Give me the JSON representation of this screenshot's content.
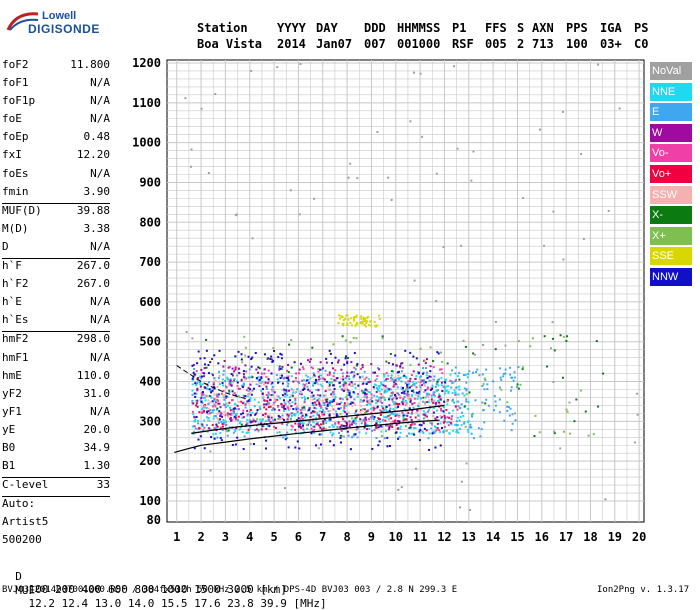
{
  "logo": {
    "top": "Lowell",
    "bottom": "DIGISONDE"
  },
  "header": {
    "labels": [
      "Station",
      "YYYY",
      "DAY",
      "DDD",
      "HHMMSS",
      "P1",
      "FFS",
      "S",
      "AXN",
      "PPS",
      "IGA",
      "PS"
    ],
    "values": [
      "Boa Vista",
      "2014",
      "Jan07",
      "007",
      "001000",
      "RSF",
      "005",
      "2",
      "713",
      "100",
      "03+",
      "C0"
    ]
  },
  "params": [
    {
      "k": "foF2",
      "v": "11.800"
    },
    {
      "k": "foF1",
      "v": "N/A"
    },
    {
      "k": "foF1p",
      "v": "N/A"
    },
    {
      "k": "foE",
      "v": "N/A"
    },
    {
      "k": "foEp",
      "v": "0.48"
    },
    {
      "k": "fxI",
      "v": "12.20"
    },
    {
      "k": "foEs",
      "v": "N/A"
    },
    {
      "k": "fmin",
      "v": "3.90"
    },
    {
      "sep": true
    },
    {
      "k": "MUF(D)",
      "v": "39.88"
    },
    {
      "k": "M(D)",
      "v": "3.38"
    },
    {
      "k": "D",
      "v": "N/A"
    },
    {
      "sep": true
    },
    {
      "k": "h`F",
      "v": "267.0"
    },
    {
      "k": "h`F2",
      "v": "267.0"
    },
    {
      "k": "h`E",
      "v": "N/A"
    },
    {
      "k": "h`Es",
      "v": "N/A"
    },
    {
      "sep": true
    },
    {
      "k": "hmF2",
      "v": "298.0"
    },
    {
      "k": "hmF1",
      "v": "N/A"
    },
    {
      "k": "hmE",
      "v": "110.0"
    },
    {
      "k": "yF2",
      "v": "31.0"
    },
    {
      "k": "yF1",
      "v": "N/A"
    },
    {
      "k": "yE",
      "v": "20.0"
    },
    {
      "k": "B0",
      "v": "34.9"
    },
    {
      "k": "B1",
      "v": "1.30"
    },
    {
      "sep": true
    },
    {
      "k": "C-level",
      "v": "33"
    },
    {
      "sep": true
    },
    {
      "t": "Auto:"
    },
    {
      "t": "Artist5"
    },
    {
      "t": "500200"
    }
  ],
  "legend": [
    {
      "label": "NoVal",
      "color": "#a0a0a0"
    },
    {
      "label": "NNE",
      "color": "#1fd9f0"
    },
    {
      "label": "E",
      "color": "#3fa7f0"
    },
    {
      "label": "W",
      "color": "#a00aa0"
    },
    {
      "label": "Vo-",
      "color": "#f040a8"
    },
    {
      "label": "Vo+",
      "color": "#f00040"
    },
    {
      "label": "SSW",
      "color": "#f5b0b0"
    },
    {
      "label": "X-",
      "color": "#0b7a10"
    },
    {
      "label": "X+",
      "color": "#7fbf50"
    },
    {
      "label": "SSE",
      "color": "#d8d800"
    },
    {
      "label": "NNW",
      "color": "#1010c8"
    }
  ],
  "distance_row": {
    "label": "D",
    "items": [
      "100",
      "200",
      "400",
      "600",
      "800",
      "1000",
      "1500",
      "3000",
      "[km]"
    ]
  },
  "muf_row": {
    "label": "MUF",
    "items": [
      "12.2",
      "12.4",
      "13.0",
      "14.0",
      "15.5",
      "17.6",
      "23.8",
      "39.9",
      "[MHz]"
    ]
  },
  "footer": {
    "left": "BVJ03_2014007001000.RSF / 384fx512h 50 kHz 2.5 km / DPS-4D BVJ03 003 / 2.8 N 299.3 E",
    "right": "Ion2Png v. 1.3.17"
  },
  "chart_data": {
    "type": "scatter",
    "xlabel": "",
    "ylabel": "",
    "xlim": [
      1,
      20
    ],
    "ylim": [
      80,
      1200
    ],
    "x_ticks": [
      1,
      2,
      3,
      4,
      5,
      6,
      7,
      8,
      9,
      10,
      11,
      12,
      13,
      14,
      15,
      16,
      17,
      18,
      19,
      20
    ],
    "y_ticks": [
      80,
      100,
      200,
      300,
      400,
      500,
      600,
      700,
      800,
      900,
      1000,
      1100,
      1200
    ],
    "grid": true,
    "legend_placement": "right",
    "profile_curve": {
      "x": [
        0.9,
        1.5,
        2.0,
        3.0,
        4.0,
        5.0,
        6.0,
        7.0,
        8.0,
        9.0,
        10.0,
        11.0,
        11.8
      ],
      "y": [
        222,
        232,
        240,
        248,
        256,
        263,
        270,
        276,
        283,
        289,
        295,
        300,
        303
      ]
    },
    "upper_trace": {
      "x": [
        1.0,
        1.5,
        2.0,
        2.5,
        3.0,
        3.5,
        4.0
      ],
      "y": [
        440,
        420,
        400,
        385,
        372,
        362,
        355
      ]
    },
    "fitted_trace": {
      "x": [
        1.6,
        2.5,
        3.5,
        4.5,
        5.5,
        6.5,
        7.5,
        8.5,
        9.5,
        10.5,
        11.5,
        12.0
      ],
      "y": [
        270,
        278,
        286,
        292,
        298,
        304,
        310,
        316,
        322,
        328,
        336,
        340
      ]
    },
    "series": [
      {
        "name": "NNE",
        "color": "#1fd9f0",
        "region": {
          "x": [
            1.6,
            13.0
          ],
          "y": [
            270,
            420
          ]
        },
        "points": 520
      },
      {
        "name": "E",
        "color": "#3fa7f0",
        "region": {
          "x": [
            1.6,
            15.0
          ],
          "y": [
            260,
            440
          ]
        },
        "points": 420
      },
      {
        "name": "W",
        "color": "#a00aa0",
        "region": {
          "x": [
            1.6,
            12.0
          ],
          "y": [
            280,
            460
          ]
        },
        "points": 260
      },
      {
        "name": "Vo-",
        "color": "#f040a8",
        "region": {
          "x": [
            1.6,
            12.5
          ],
          "y": [
            280,
            440
          ]
        },
        "points": 220
      },
      {
        "name": "Vo+",
        "color": "#f00040",
        "region": {
          "x": [
            1.6,
            12.5
          ],
          "y": [
            280,
            360
          ]
        },
        "points": 120
      },
      {
        "name": "SSW",
        "color": "#f5b0b0",
        "region": {
          "x": [
            2.0,
            12.0
          ],
          "y": [
            300,
            420
          ]
        },
        "points": 160
      },
      {
        "name": "X-",
        "color": "#0b7a10",
        "region": {
          "x": [
            2.0,
            18.5
          ],
          "y": [
            260,
            520
          ]
        },
        "points": 70
      },
      {
        "name": "X+",
        "color": "#7fbf50",
        "region": {
          "x": [
            2.0,
            18.5
          ],
          "y": [
            260,
            520
          ]
        },
        "points": 60
      },
      {
        "name": "SSE",
        "color": "#d8d800",
        "region": {
          "x": [
            7.6,
            9.3
          ],
          "y": [
            540,
            570
          ]
        },
        "points": 60
      },
      {
        "name": "NNW",
        "color": "#1010c8",
        "region": {
          "x": [
            1.6,
            12.0
          ],
          "y": [
            230,
            480
          ]
        },
        "points": 300
      },
      {
        "name": "NoVal",
        "color": "#a0a0a0",
        "region": {
          "x": [
            1.0,
            20.0
          ],
          "y": [
            80,
            1200
          ]
        },
        "points": 80
      }
    ]
  }
}
